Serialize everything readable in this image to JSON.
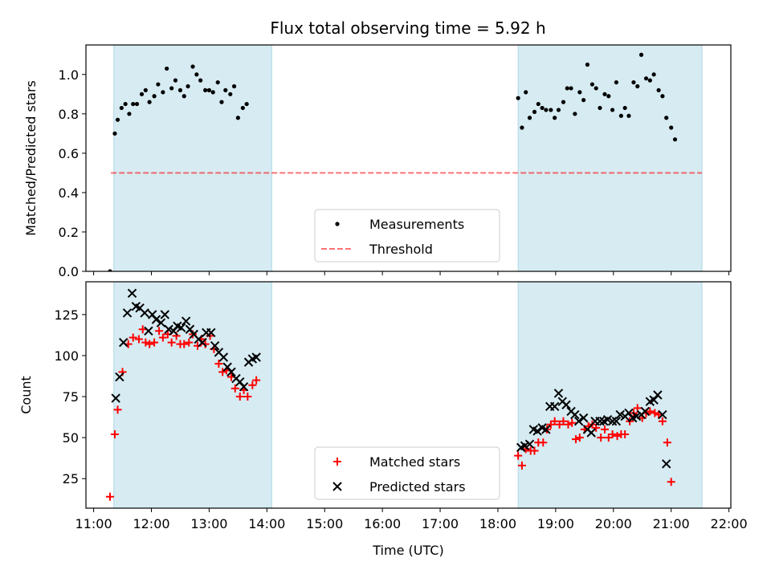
{
  "title": "Flux total observing time = 5.92 h",
  "colors": {
    "band": "#add8e6",
    "measurement": "#000000",
    "threshold": "#ff0000",
    "matched": "#ff0000",
    "predicted": "#000000"
  },
  "chart_data": [
    {
      "type": "scatter",
      "ylabel": "Matched/Predicted stars",
      "ylim": [
        0,
        1.15
      ],
      "xlim": [
        "10:52",
        "22:02"
      ],
      "yticks": [
        "0.0",
        "0.2",
        "0.4",
        "0.6",
        "0.8",
        "1.0"
      ],
      "grid": false,
      "legend_position": "lower-center",
      "legend": [
        "Measurements",
        "Threshold"
      ],
      "shaded_intervals": [
        [
          "11:21",
          "14:05"
        ],
        [
          "18:21",
          "21:32"
        ]
      ],
      "threshold": {
        "name": "Threshold",
        "y": 0.5,
        "x": [
          "11:18",
          "21:32"
        ],
        "style": "dashed"
      },
      "series": [
        {
          "name": "Measurements",
          "points": [
            [
              "11:17",
              0.0
            ],
            [
              "11:22",
              0.7
            ],
            [
              "11:25",
              0.77
            ],
            [
              "11:29",
              0.83
            ],
            [
              "11:33",
              0.85
            ],
            [
              "11:37",
              0.8
            ],
            [
              "11:41",
              0.85
            ],
            [
              "11:45",
              0.85
            ],
            [
              "11:50",
              0.9
            ],
            [
              "11:54",
              0.92
            ],
            [
              "11:58",
              0.86
            ],
            [
              "12:03",
              0.89
            ],
            [
              "12:07",
              0.95
            ],
            [
              "12:12",
              0.91
            ],
            [
              "12:16",
              1.03
            ],
            [
              "12:21",
              0.93
            ],
            [
              "12:25",
              0.97
            ],
            [
              "12:30",
              0.92
            ],
            [
              "12:34",
              0.89
            ],
            [
              "12:38",
              0.94
            ],
            [
              "12:43",
              1.04
            ],
            [
              "12:47",
              1.0
            ],
            [
              "12:51",
              0.97
            ],
            [
              "12:56",
              0.92
            ],
            [
              "13:00",
              0.92
            ],
            [
              "13:04",
              0.91
            ],
            [
              "13:09",
              0.96
            ],
            [
              "13:13",
              0.86
            ],
            [
              "13:17",
              0.92
            ],
            [
              "13:22",
              0.9
            ],
            [
              "13:26",
              0.94
            ],
            [
              "13:30",
              0.78
            ],
            [
              "13:35",
              0.83
            ],
            [
              "13:39",
              0.85
            ],
            [
              "18:21",
              0.88
            ],
            [
              "18:25",
              0.73
            ],
            [
              "18:29",
              0.91
            ],
            [
              "18:33",
              0.78
            ],
            [
              "18:38",
              0.81
            ],
            [
              "18:42",
              0.85
            ],
            [
              "18:46",
              0.83
            ],
            [
              "18:50",
              0.82
            ],
            [
              "18:55",
              0.82
            ],
            [
              "18:59",
              0.78
            ],
            [
              "19:03",
              0.82
            ],
            [
              "19:08",
              0.86
            ],
            [
              "19:12",
              0.93
            ],
            [
              "19:16",
              0.93
            ],
            [
              "19:20",
              0.8
            ],
            [
              "19:25",
              0.91
            ],
            [
              "19:29",
              0.87
            ],
            [
              "19:33",
              1.05
            ],
            [
              "19:38",
              0.95
            ],
            [
              "19:42",
              0.93
            ],
            [
              "19:46",
              0.83
            ],
            [
              "19:51",
              0.9
            ],
            [
              "19:55",
              0.89
            ],
            [
              "19:59",
              0.82
            ],
            [
              "20:03",
              0.96
            ],
            [
              "20:08",
              0.79
            ],
            [
              "20:12",
              0.83
            ],
            [
              "20:16",
              0.79
            ],
            [
              "20:21",
              0.96
            ],
            [
              "20:25",
              0.94
            ],
            [
              "20:29",
              1.1
            ],
            [
              "20:34",
              0.98
            ],
            [
              "20:38",
              0.97
            ],
            [
              "20:42",
              1.0
            ],
            [
              "20:47",
              0.92
            ],
            [
              "20:51",
              0.89
            ],
            [
              "20:55",
              0.78
            ],
            [
              "21:00",
              0.73
            ],
            [
              "21:04",
              0.67
            ]
          ]
        }
      ]
    },
    {
      "type": "scatter",
      "ylabel": "Count",
      "xlabel": "Time (UTC)",
      "ylim": [
        7,
        145
      ],
      "xlim": [
        "10:52",
        "22:02"
      ],
      "yticks": [
        "25",
        "50",
        "75",
        "100",
        "125"
      ],
      "xticks": [
        "11:00",
        "12:00",
        "13:00",
        "14:00",
        "15:00",
        "16:00",
        "17:00",
        "18:00",
        "19:00",
        "20:00",
        "21:00",
        "22:00"
      ],
      "grid": false,
      "legend_position": "lower-center",
      "legend": [
        "Matched stars",
        "Predicted stars"
      ],
      "shaded_intervals": [
        [
          "11:21",
          "14:05"
        ],
        [
          "18:21",
          "21:32"
        ]
      ],
      "series": [
        {
          "name": "Matched stars",
          "points": [
            [
              "11:17",
              14
            ],
            [
              "11:22",
              52
            ],
            [
              "11:25",
              67
            ],
            [
              "11:30",
              90
            ],
            [
              "11:36",
              107
            ],
            [
              "11:41",
              111
            ],
            [
              "11:47",
              110
            ],
            [
              "11:51",
              116
            ],
            [
              "11:54",
              108
            ],
            [
              "11:58",
              107
            ],
            [
              "12:03",
              108
            ],
            [
              "12:08",
              115
            ],
            [
              "12:12",
              111
            ],
            [
              "12:17",
              113
            ],
            [
              "12:21",
              108
            ],
            [
              "12:26",
              112
            ],
            [
              "12:30",
              107
            ],
            [
              "12:34",
              107
            ],
            [
              "12:39",
              108
            ],
            [
              "12:43",
              113
            ],
            [
              "12:48",
              106
            ],
            [
              "12:52",
              110
            ],
            [
              "12:56",
              107
            ],
            [
              "13:01",
              112
            ],
            [
              "13:05",
              104
            ],
            [
              "13:10",
              95
            ],
            [
              "13:14",
              90
            ],
            [
              "13:18",
              91
            ],
            [
              "13:23",
              87
            ],
            [
              "13:27",
              80
            ],
            [
              "13:32",
              75
            ],
            [
              "13:36",
              79
            ],
            [
              "13:40",
              75
            ],
            [
              "13:45",
              82
            ],
            [
              "13:49",
              85
            ],
            [
              "18:21",
              39
            ],
            [
              "18:25",
              33
            ],
            [
              "18:29",
              43
            ],
            [
              "18:34",
              42
            ],
            [
              "18:38",
              42
            ],
            [
              "18:42",
              47
            ],
            [
              "18:47",
              47
            ],
            [
              "18:51",
              55
            ],
            [
              "18:55",
              58
            ],
            [
              "18:59",
              60
            ],
            [
              "19:04",
              58
            ],
            [
              "19:08",
              60
            ],
            [
              "19:13",
              58
            ],
            [
              "19:17",
              59
            ],
            [
              "19:21",
              49
            ],
            [
              "19:25",
              50
            ],
            [
              "19:30",
              55
            ],
            [
              "19:34",
              57
            ],
            [
              "19:38",
              58
            ],
            [
              "19:42",
              56
            ],
            [
              "19:47",
              50
            ],
            [
              "19:51",
              55
            ],
            [
              "19:55",
              50
            ],
            [
              "19:59",
              52
            ],
            [
              "20:04",
              51
            ],
            [
              "20:08",
              52
            ],
            [
              "20:12",
              52
            ],
            [
              "20:17",
              60
            ],
            [
              "20:21",
              65
            ],
            [
              "20:25",
              68
            ],
            [
              "20:30",
              62
            ],
            [
              "20:34",
              65
            ],
            [
              "20:38",
              66
            ],
            [
              "20:43",
              65
            ],
            [
              "20:47",
              64
            ],
            [
              "20:51",
              60
            ],
            [
              "20:56",
              47
            ],
            [
              "21:00",
              23
            ]
          ]
        },
        {
          "name": "Predicted stars",
          "points": [
            [
              "11:23",
              74
            ],
            [
              "11:27",
              87
            ],
            [
              "11:31",
              108
            ],
            [
              "11:35",
              126
            ],
            [
              "11:40",
              138
            ],
            [
              "11:44",
              130
            ],
            [
              "11:48",
              129
            ],
            [
              "11:53",
              126
            ],
            [
              "11:57",
              115
            ],
            [
              "12:01",
              125
            ],
            [
              "12:05",
              122
            ],
            [
              "12:10",
              120
            ],
            [
              "12:14",
              125
            ],
            [
              "12:18",
              116
            ],
            [
              "12:23",
              115
            ],
            [
              "12:27",
              118
            ],
            [
              "12:31",
              117
            ],
            [
              "12:36",
              121
            ],
            [
              "12:40",
              116
            ],
            [
              "12:44",
              113
            ],
            [
              "12:49",
              110
            ],
            [
              "12:53",
              108
            ],
            [
              "12:57",
              114
            ],
            [
              "13:02",
              114
            ],
            [
              "13:06",
              106
            ],
            [
              "13:10",
              102
            ],
            [
              "13:15",
              99
            ],
            [
              "13:19",
              93
            ],
            [
              "13:23",
              90
            ],
            [
              "13:28",
              86
            ],
            [
              "13:32",
              84
            ],
            [
              "13:36",
              81
            ],
            [
              "13:41",
              96
            ],
            [
              "13:45",
              98
            ],
            [
              "13:49",
              99
            ],
            [
              "18:24",
              44
            ],
            [
              "18:28",
              45
            ],
            [
              "18:33",
              46
            ],
            [
              "18:37",
              55
            ],
            [
              "18:41",
              54
            ],
            [
              "18:46",
              56
            ],
            [
              "18:50",
              55
            ],
            [
              "18:54",
              69
            ],
            [
              "18:59",
              69
            ],
            [
              "19:03",
              77
            ],
            [
              "19:07",
              72
            ],
            [
              "19:11",
              70
            ],
            [
              "19:16",
              66
            ],
            [
              "19:20",
              64
            ],
            [
              "19:24",
              60
            ],
            [
              "19:29",
              62
            ],
            [
              "19:33",
              55
            ],
            [
              "19:37",
              53
            ],
            [
              "19:41",
              60
            ],
            [
              "19:46",
              60
            ],
            [
              "19:50",
              60
            ],
            [
              "19:54",
              61
            ],
            [
              "19:59",
              60
            ],
            [
              "20:03",
              60
            ],
            [
              "20:07",
              64
            ],
            [
              "20:12",
              63
            ],
            [
              "20:16",
              65
            ],
            [
              "20:20",
              62
            ],
            [
              "20:24",
              63
            ],
            [
              "20:29",
              64
            ],
            [
              "20:33",
              66
            ],
            [
              "20:38",
              72
            ],
            [
              "20:42",
              73
            ],
            [
              "20:46",
              76
            ],
            [
              "20:51",
              64
            ],
            [
              "20:55",
              34
            ]
          ]
        }
      ]
    }
  ]
}
